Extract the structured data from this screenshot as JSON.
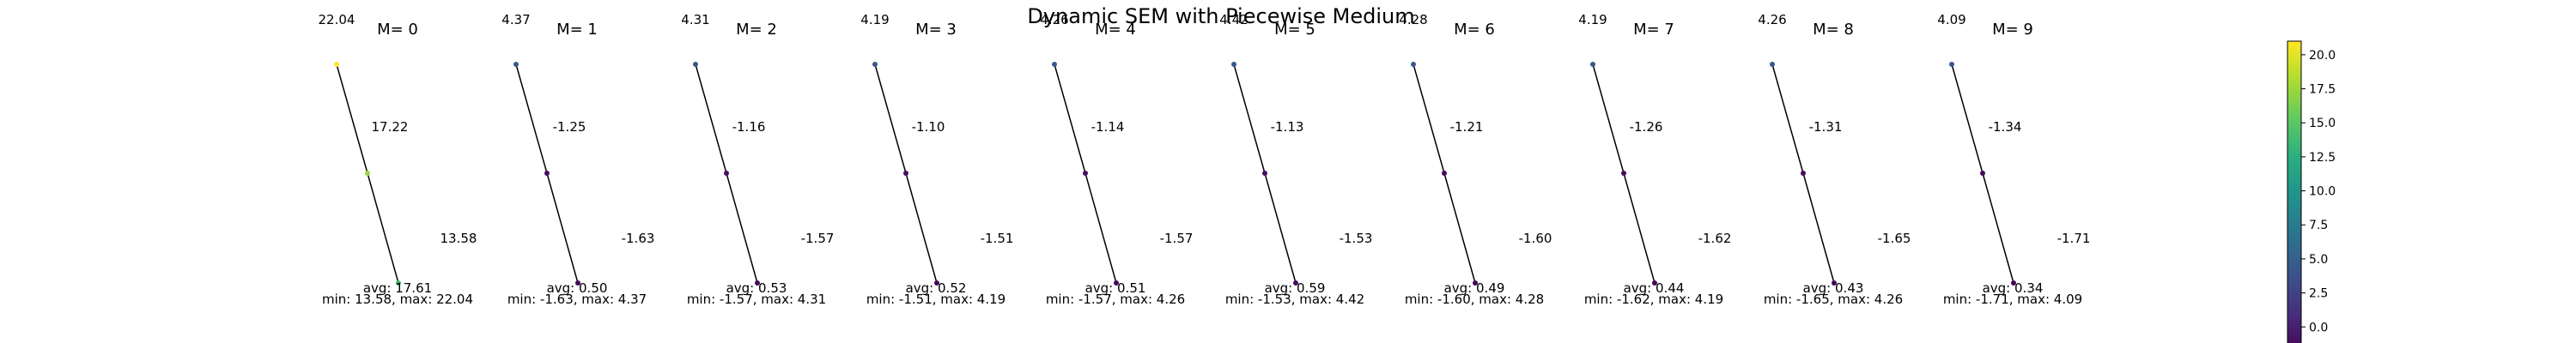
{
  "title": "Dynamic SEM with Piecewise Medium",
  "chart_data": {
    "type": "line",
    "panels": [
      {
        "label": "M= 0",
        "corner": "22.04",
        "nodes": [
          22.04,
          17.22,
          13.58
        ],
        "edges": [
          "17.22",
          "13.58"
        ],
        "avg": "avg: 17.61",
        "range": "min: 13.58, max: 22.04"
      },
      {
        "label": "M= 1",
        "corner": "4.37",
        "nodes": [
          4.37,
          -1.25,
          -1.63
        ],
        "edges": [
          "-1.25",
          "-1.63"
        ],
        "avg": "avg: 0.50",
        "range": "min: -1.63, max: 4.37"
      },
      {
        "label": "M= 2",
        "corner": "4.31",
        "nodes": [
          4.31,
          -1.16,
          -1.57
        ],
        "edges": [
          "-1.16",
          "-1.57"
        ],
        "avg": "avg: 0.53",
        "range": "min: -1.57, max: 4.31"
      },
      {
        "label": "M= 3",
        "corner": "4.19",
        "nodes": [
          4.19,
          -1.1,
          -1.51
        ],
        "edges": [
          "-1.10",
          "-1.51"
        ],
        "avg": "avg: 0.52",
        "range": "min: -1.51, max: 4.19"
      },
      {
        "label": "M= 4",
        "corner": "4.26",
        "nodes": [
          4.26,
          -1.14,
          -1.57
        ],
        "edges": [
          "-1.14",
          "-1.57"
        ],
        "avg": "avg: 0.51",
        "range": "min: -1.57, max: 4.26"
      },
      {
        "label": "M= 5",
        "corner": "4.42",
        "nodes": [
          4.42,
          -1.13,
          -1.53
        ],
        "edges": [
          "-1.13",
          "-1.53"
        ],
        "avg": "avg: 0.59",
        "range": "min: -1.53, max: 4.42"
      },
      {
        "label": "M= 6",
        "corner": "4.28",
        "nodes": [
          4.28,
          -1.21,
          -1.6
        ],
        "edges": [
          "-1.21",
          "-1.60"
        ],
        "avg": "avg: 0.49",
        "range": "min: -1.60, max: 4.28"
      },
      {
        "label": "M= 7",
        "corner": "4.19",
        "nodes": [
          4.19,
          -1.26,
          -1.62
        ],
        "edges": [
          "-1.26",
          "-1.62"
        ],
        "avg": "avg: 0.44",
        "range": "min: -1.62, max: 4.19"
      },
      {
        "label": "M= 8",
        "corner": "4.26",
        "nodes": [
          4.26,
          -1.31,
          -1.65
        ],
        "edges": [
          "-1.31",
          "-1.65"
        ],
        "avg": "avg: 0.43",
        "range": "min: -1.65, max: 4.26"
      },
      {
        "label": "M= 9",
        "corner": "4.09",
        "nodes": [
          4.09,
          -1.34,
          -1.71
        ],
        "edges": [
          "-1.34",
          "-1.71"
        ],
        "avg": "avg: 0.34",
        "range": "min: -1.71, max: 4.09"
      }
    ],
    "colorbar": {
      "colormap": "viridis",
      "range": [
        -2.0,
        21.0
      ],
      "ticks": [
        "0.0",
        "2.5",
        "5.0",
        "7.5",
        "10.0",
        "12.5",
        "15.0",
        "17.5",
        "20.0"
      ],
      "tick_values": [
        0.0,
        2.5,
        5.0,
        7.5,
        10.0,
        12.5,
        15.0,
        17.5,
        20.0
      ]
    }
  }
}
